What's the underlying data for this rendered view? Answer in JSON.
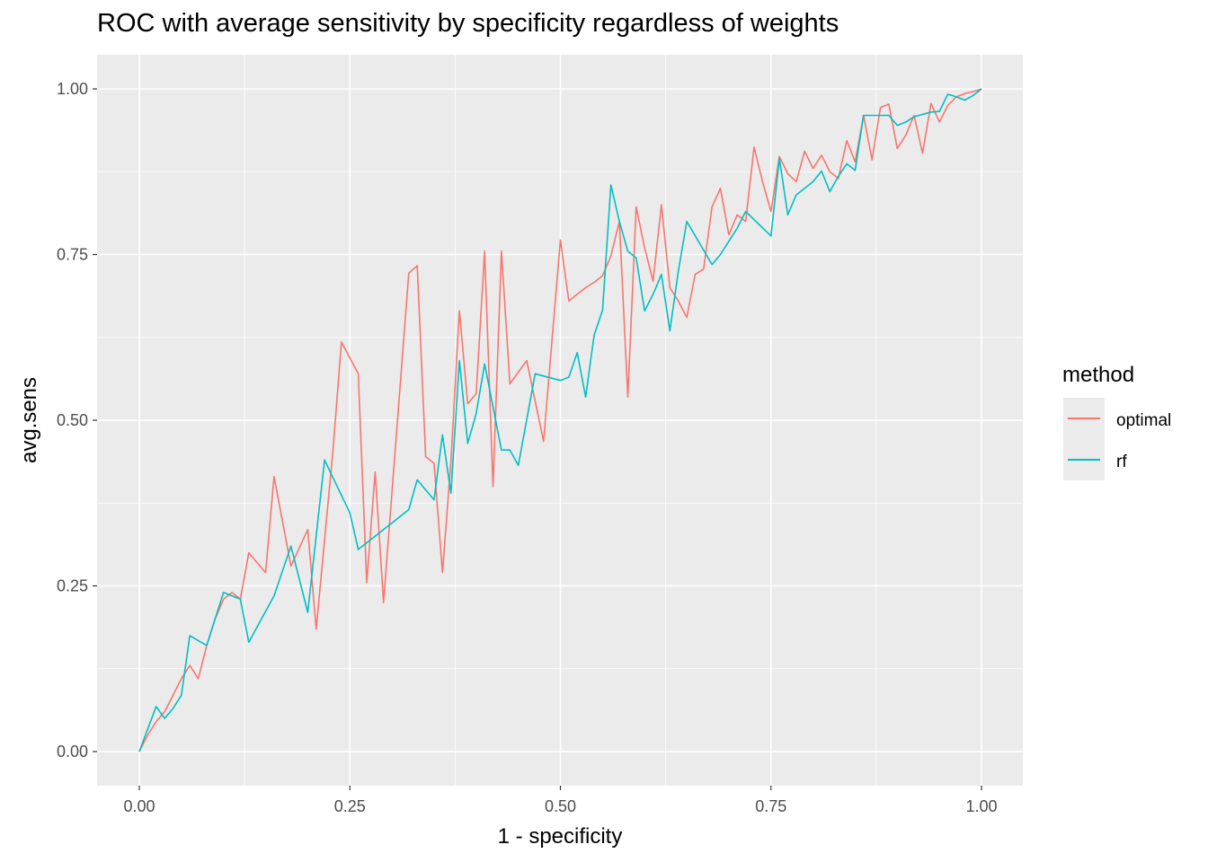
{
  "chart_data": {
    "type": "line",
    "title": "ROC with average sensitivity by specificity regardless of weights",
    "xlabel": "1 - specificity",
    "ylabel": "avg.sens",
    "xlim": [
      0,
      1
    ],
    "ylim": [
      0,
      1
    ],
    "xticks": [
      "0.00",
      "0.25",
      "0.50",
      "0.75",
      "1.00"
    ],
    "yticks": [
      "0.00",
      "0.25",
      "0.50",
      "0.75",
      "1.00"
    ],
    "legend_title": "method",
    "grid": true,
    "colors": {
      "optimal": "#F8766D",
      "rf": "#00BFC4",
      "panel": "#EBEBEB",
      "grid": "#FFFFFF"
    },
    "series": [
      {
        "name": "optimal",
        "x": [
          0.0,
          0.01,
          0.02,
          0.03,
          0.04,
          0.05,
          0.06,
          0.07,
          0.08,
          0.09,
          0.1,
          0.11,
          0.12,
          0.13,
          0.15,
          0.16,
          0.18,
          0.2,
          0.21,
          0.23,
          0.24,
          0.26,
          0.27,
          0.28,
          0.29,
          0.32,
          0.33,
          0.34,
          0.35,
          0.36,
          0.37,
          0.38,
          0.39,
          0.4,
          0.41,
          0.42,
          0.43,
          0.44,
          0.46,
          0.48,
          0.49,
          0.5,
          0.51,
          0.52,
          0.53,
          0.54,
          0.55,
          0.56,
          0.57,
          0.58,
          0.59,
          0.6,
          0.61,
          0.62,
          0.63,
          0.64,
          0.65,
          0.66,
          0.67,
          0.68,
          0.69,
          0.7,
          0.71,
          0.72,
          0.73,
          0.74,
          0.75,
          0.76,
          0.77,
          0.78,
          0.79,
          0.8,
          0.81,
          0.82,
          0.83,
          0.84,
          0.85,
          0.86,
          0.87,
          0.88,
          0.89,
          0.9,
          0.91,
          0.92,
          0.93,
          0.94,
          0.95,
          0.96,
          0.97,
          0.98,
          0.99,
          1.0
        ],
        "y": [
          0.0,
          0.025,
          0.045,
          0.06,
          0.085,
          0.11,
          0.13,
          0.11,
          0.16,
          0.2,
          0.23,
          0.24,
          0.23,
          0.3,
          0.27,
          0.415,
          0.28,
          0.335,
          0.185,
          0.455,
          0.618,
          0.57,
          0.255,
          0.422,
          0.225,
          0.722,
          0.733,
          0.445,
          0.435,
          0.27,
          0.438,
          0.665,
          0.525,
          0.54,
          0.755,
          0.4,
          0.755,
          0.555,
          0.59,
          0.468,
          0.62,
          0.772,
          0.68,
          0.69,
          0.7,
          0.708,
          0.718,
          0.748,
          0.8,
          0.535,
          0.822,
          0.76,
          0.71,
          0.825,
          0.7,
          0.68,
          0.655,
          0.72,
          0.728,
          0.822,
          0.85,
          0.78,
          0.81,
          0.8,
          0.912,
          0.86,
          0.815,
          0.898,
          0.872,
          0.86,
          0.906,
          0.88,
          0.9,
          0.875,
          0.865,
          0.922,
          0.89,
          0.96,
          0.893,
          0.972,
          0.977,
          0.91,
          0.93,
          0.96,
          0.903,
          0.978,
          0.95,
          0.975,
          0.988,
          0.993,
          0.996,
          1.0
        ]
      },
      {
        "name": "rf",
        "x": [
          0.0,
          0.02,
          0.03,
          0.04,
          0.05,
          0.06,
          0.08,
          0.09,
          0.1,
          0.12,
          0.13,
          0.16,
          0.18,
          0.2,
          0.22,
          0.25,
          0.26,
          0.32,
          0.33,
          0.35,
          0.36,
          0.37,
          0.38,
          0.39,
          0.4,
          0.41,
          0.43,
          0.44,
          0.45,
          0.47,
          0.5,
          0.51,
          0.52,
          0.53,
          0.54,
          0.55,
          0.56,
          0.57,
          0.58,
          0.59,
          0.6,
          0.61,
          0.62,
          0.63,
          0.64,
          0.65,
          0.68,
          0.69,
          0.7,
          0.71,
          0.72,
          0.75,
          0.76,
          0.77,
          0.78,
          0.8,
          0.81,
          0.82,
          0.83,
          0.84,
          0.85,
          0.86,
          0.87,
          0.89,
          0.9,
          0.91,
          0.92,
          0.94,
          0.95,
          0.96,
          0.97,
          0.98,
          0.99,
          1.0
        ],
        "y": [
          0.0,
          0.068,
          0.05,
          0.065,
          0.085,
          0.175,
          0.16,
          0.2,
          0.24,
          0.23,
          0.165,
          0.235,
          0.31,
          0.21,
          0.44,
          0.36,
          0.305,
          0.365,
          0.41,
          0.38,
          0.478,
          0.39,
          0.59,
          0.465,
          0.51,
          0.585,
          0.455,
          0.455,
          0.432,
          0.57,
          0.56,
          0.565,
          0.602,
          0.535,
          0.628,
          0.666,
          0.855,
          0.8,
          0.755,
          0.745,
          0.665,
          0.69,
          0.72,
          0.635,
          0.725,
          0.8,
          0.735,
          0.75,
          0.77,
          0.79,
          0.815,
          0.778,
          0.895,
          0.81,
          0.84,
          0.86,
          0.876,
          0.845,
          0.868,
          0.887,
          0.877,
          0.96,
          0.96,
          0.96,
          0.945,
          0.95,
          0.958,
          0.965,
          0.966,
          0.992,
          0.988,
          0.983,
          0.99,
          1.0
        ]
      }
    ]
  }
}
